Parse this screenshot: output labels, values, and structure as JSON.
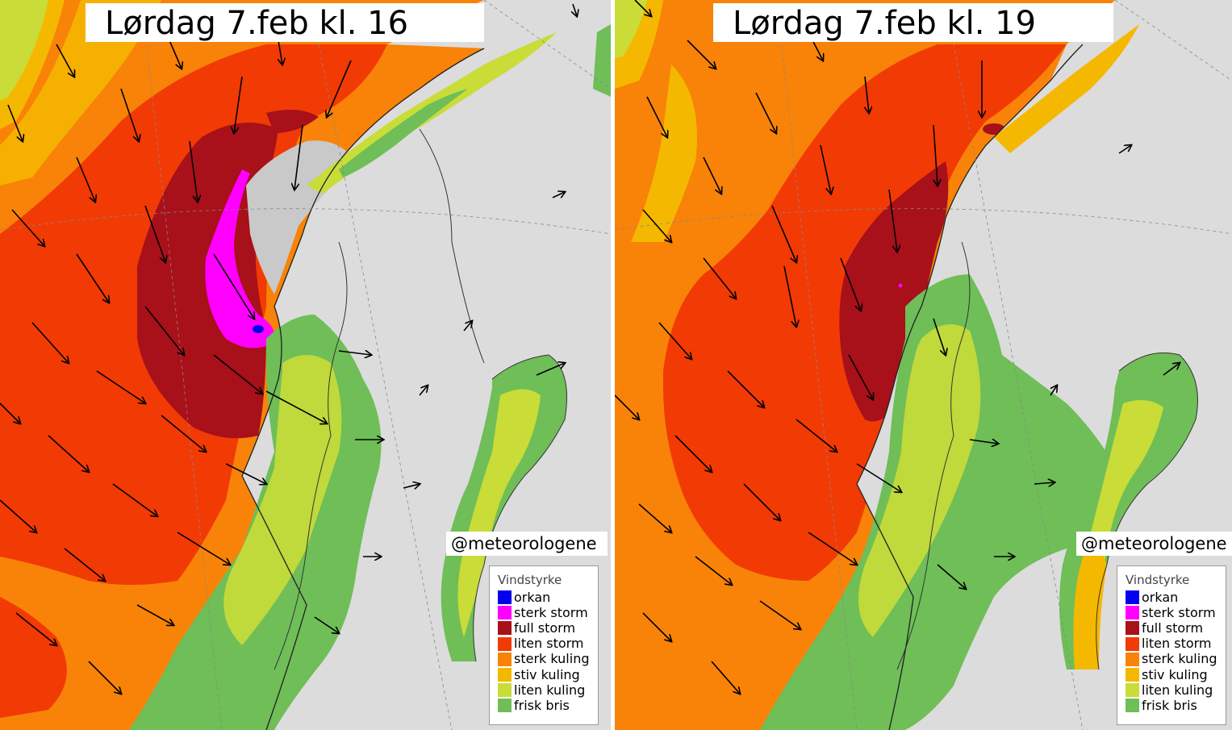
{
  "panels": [
    {
      "id": "left",
      "title": "Lørdag 7.feb kl. 16",
      "credit": "@meteorologene"
    },
    {
      "id": "right",
      "title": "Lørdag 7.feb kl. 19",
      "credit": "@meteorologene"
    }
  ],
  "legend": {
    "title": "Vindstyrke",
    "items": [
      {
        "label": "orkan",
        "color": "#0000ee"
      },
      {
        "label": "sterk storm",
        "color": "#ff00ff"
      },
      {
        "label": "full storm",
        "color": "#a8101a"
      },
      {
        "label": "liten storm",
        "color": "#f23a05"
      },
      {
        "label": "sterk kuling",
        "color": "#f88308"
      },
      {
        "label": "stiv kuling",
        "color": "#f5b800"
      },
      {
        "label": "liten kuling",
        "color": "#c9dc38"
      },
      {
        "label": "frisk bris",
        "color": "#6fbe58"
      }
    ]
  }
}
